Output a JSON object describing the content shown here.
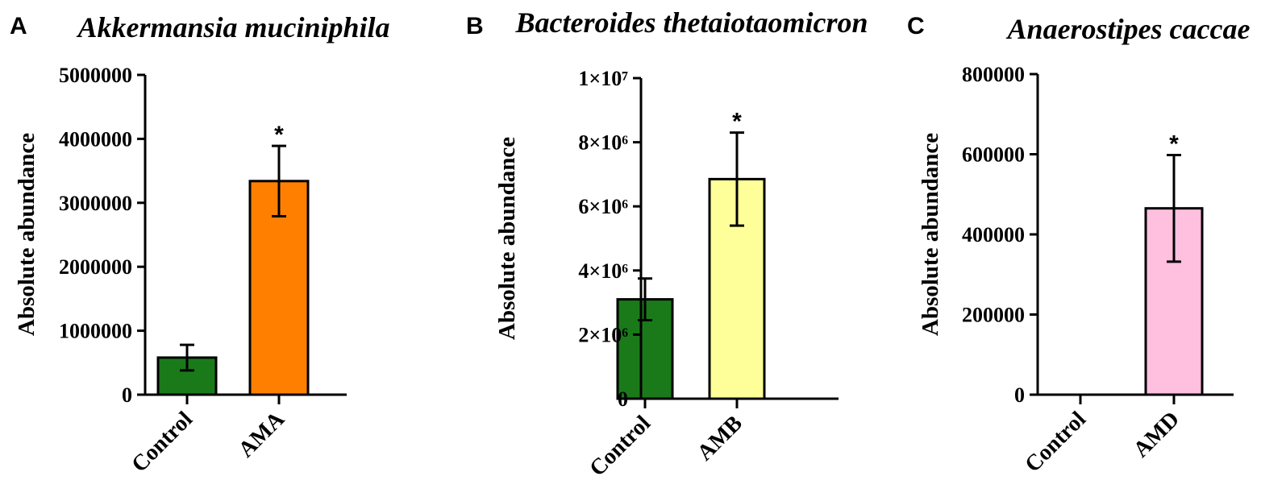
{
  "chart_data": [
    {
      "type": "bar",
      "panel": "A",
      "title": "Akkermansia muciniphila",
      "ylabel": "Absolute abundance",
      "ylim": [
        0,
        5000000
      ],
      "yticks": [
        0,
        1000000,
        2000000,
        3000000,
        4000000,
        5000000
      ],
      "ytick_labels": [
        "0",
        "1000000",
        "2000000",
        "3000000",
        "4000000",
        "5000000"
      ],
      "categories": [
        "Control",
        "AMA"
      ],
      "values": [
        580000,
        3340000
      ],
      "errors": [
        200000,
        550000
      ],
      "colors": [
        "#1a7a1a",
        "#ff8000"
      ],
      "significance": [
        "",
        "*"
      ]
    },
    {
      "type": "bar",
      "panel": "B",
      "title": "Bacteroides thetaiotaomicron",
      "ylabel": "Absolute abundance",
      "ylim": [
        0,
        10000000
      ],
      "yticks": [
        0,
        2000000,
        4000000,
        6000000,
        8000000,
        10000000
      ],
      "ytick_labels": [
        "0",
        "2×10⁶",
        "4×10⁶",
        "6×10⁶",
        "8×10⁶",
        "1×10⁷"
      ],
      "categories": [
        "Control",
        "AMB"
      ],
      "values": [
        3100000,
        6850000
      ],
      "errors": [
        650000,
        1450000
      ],
      "colors": [
        "#1a7a1a",
        "#ffff99"
      ],
      "significance": [
        "",
        "*"
      ]
    },
    {
      "type": "bar",
      "panel": "C",
      "title": "Anaerostipes caccae",
      "ylabel": "Absolute abundance",
      "ylim": [
        0,
        800000
      ],
      "yticks": [
        0,
        200000,
        400000,
        600000,
        800000
      ],
      "ytick_labels": [
        "0",
        "200000",
        "400000",
        "600000",
        "800000"
      ],
      "categories": [
        "Control",
        "AMD"
      ],
      "values": [
        0,
        465000
      ],
      "errors": [
        0,
        133000
      ],
      "colors": [
        "#1a7a1a",
        "#ffbfdf"
      ],
      "significance": [
        "",
        "*"
      ]
    }
  ]
}
